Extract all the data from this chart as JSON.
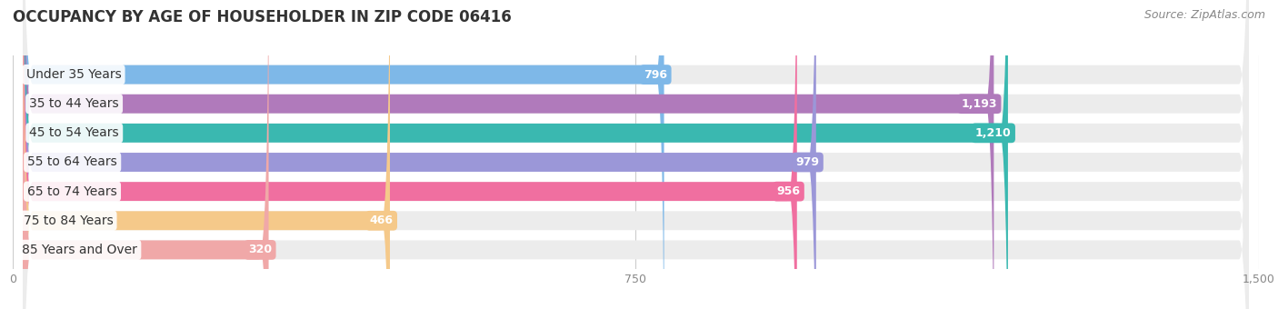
{
  "title": "OCCUPANCY BY AGE OF HOUSEHOLDER IN ZIP CODE 06416",
  "source": "Source: ZipAtlas.com",
  "categories": [
    "Under 35 Years",
    "35 to 44 Years",
    "45 to 54 Years",
    "55 to 64 Years",
    "65 to 74 Years",
    "75 to 84 Years",
    "85 Years and Over"
  ],
  "values": [
    796,
    1193,
    1210,
    979,
    956,
    466,
    320
  ],
  "bar_colors": [
    "#7eb8e8",
    "#b07abb",
    "#3ab8b0",
    "#9b97d8",
    "#f06fa0",
    "#f5c98a",
    "#f0a8a8"
  ],
  "bar_bg_color": "#ececec",
  "xlim_max": 1500,
  "xticks": [
    0,
    750,
    1500
  ],
  "value_label_color": "#ffffff",
  "title_fontsize": 12,
  "source_fontsize": 9,
  "label_fontsize": 10,
  "value_fontsize": 9,
  "background_color": "#ffffff",
  "bar_height": 0.65
}
